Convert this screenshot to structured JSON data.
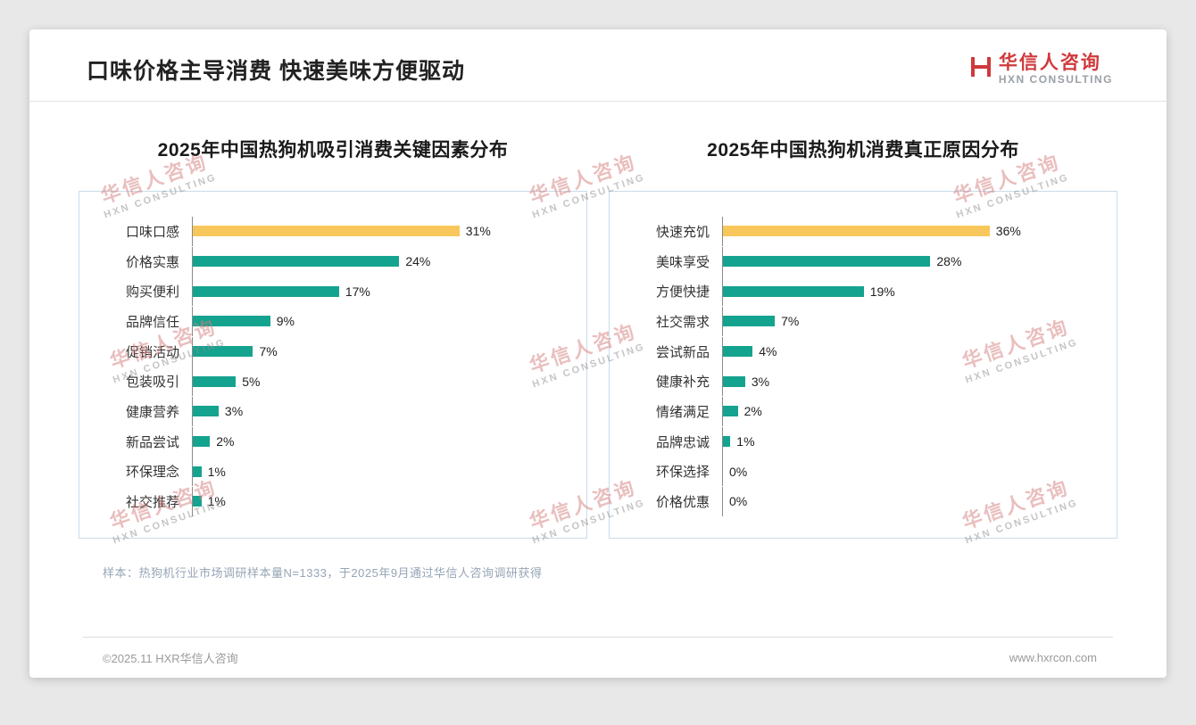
{
  "page": {
    "title": "口味价格主导消费 快速美味方便驱动",
    "logo": {
      "cn": "华信人咨询",
      "en": "HXN CONSULTING"
    },
    "watermark": {
      "cn": "华信人咨询",
      "en": "HXN CONSULTING"
    },
    "sample_note": "样本：热狗机行业市场调研样本量N=1333，于2025年9月通过华信人咨询调研获得",
    "footer": {
      "copyright": "©2025.11 HXR华信人咨询",
      "website": "www.hxrcon.com"
    },
    "colors": {
      "accent_red": "#d0393b",
      "teal_bar": "#14a38e",
      "yellow_bar": "#f8c75c",
      "chart_border": "#c9dcea"
    }
  },
  "chart_data": [
    {
      "type": "bar",
      "orientation": "horizontal",
      "title": "2025年中国热狗机吸引消费关键因素分布",
      "categories": [
        "口味口感",
        "价格实惠",
        "购买便利",
        "品牌信任",
        "促销活动",
        "包装吸引",
        "健康营养",
        "新品尝试",
        "环保理念",
        "社交推荐"
      ],
      "values": [
        31,
        24,
        17,
        9,
        7,
        5,
        3,
        2,
        1,
        1
      ],
      "unit": "%",
      "bar_color": "#14a38e",
      "highlight_color": "#f8c75c",
      "xlim": [
        0,
        36
      ],
      "grid": false,
      "legend": false
    },
    {
      "type": "bar",
      "orientation": "horizontal",
      "title": "2025年中国热狗机消费真正原因分布",
      "categories": [
        "快速充饥",
        "美味享受",
        "方便快捷",
        "社交需求",
        "尝试新品",
        "健康补充",
        "情绪满足",
        "品牌忠诚",
        "环保选择",
        "价格优惠"
      ],
      "values": [
        36,
        28,
        19,
        7,
        4,
        3,
        2,
        1,
        0,
        0
      ],
      "unit": "%",
      "bar_color": "#14a38e",
      "highlight_color": "#f8c75c",
      "xlim": [
        0,
        40
      ],
      "grid": false,
      "legend": false
    }
  ]
}
